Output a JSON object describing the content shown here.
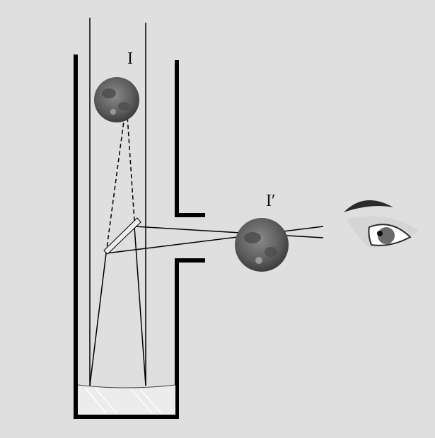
{
  "diagram": {
    "type": "newtonian-reflector-telescope",
    "object_label": "I",
    "image_label": "I′",
    "colors": {
      "background": "#dfdfdf",
      "tube": "#000000",
      "moon_dark": "#3d3d3d",
      "moon_light": "#8a8a8a",
      "mirror_glass": "#ececec",
      "eyebrow": "#2a2a2a",
      "iris": "#6b6b6b",
      "pupil": "#111111"
    },
    "icons": [
      "moon-icon",
      "eye-icon",
      "flat-mirror",
      "concave-mirror"
    ]
  }
}
